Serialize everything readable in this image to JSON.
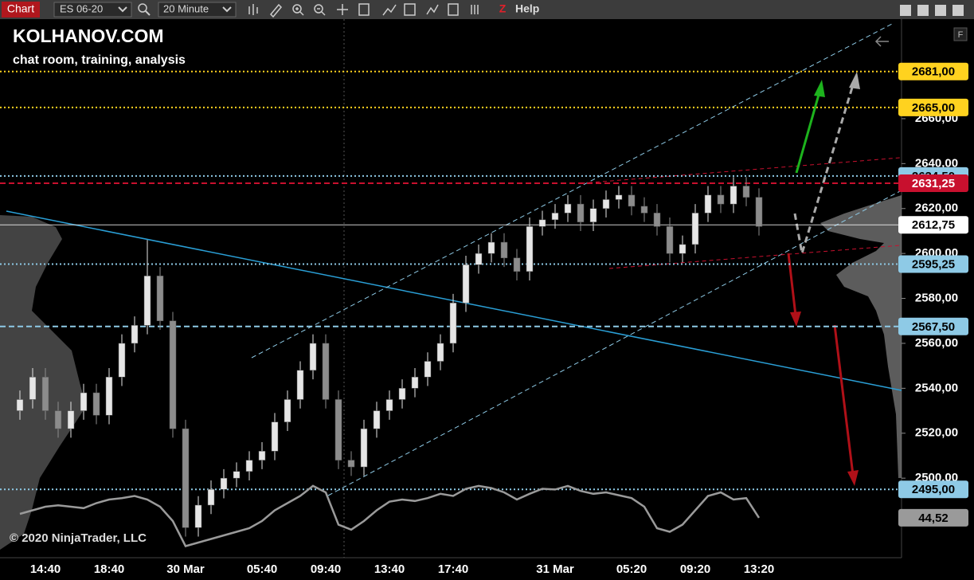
{
  "toolbar": {
    "tab": "Chart",
    "instrument": "ES 06-20",
    "interval": "20 Minute",
    "help": "Help"
  },
  "watermark": {
    "title": "KOLHANOV.COM",
    "subtitle": "chat room, training, analysis"
  },
  "copyright": "© 2020 NinjaTrader, LLC",
  "chart_data": {
    "type": "candlestick",
    "categories": [
      null,
      null,
      "14:40",
      null,
      null,
      null,
      null,
      "18:40",
      null,
      null,
      null,
      null,
      null,
      "30 Mar",
      null,
      null,
      null,
      null,
      null,
      "05:40",
      null,
      null,
      null,
      null,
      "09:40",
      null,
      null,
      null,
      null,
      "13:40",
      null,
      null,
      null,
      null,
      "17:40",
      null,
      null,
      null,
      null,
      null,
      null,
      null,
      "31 Mar",
      null,
      null,
      null,
      null,
      null,
      "05:20",
      null,
      null,
      null,
      null,
      "09:20",
      null,
      null,
      null,
      null,
      "13:20"
    ],
    "open": [
      2530,
      2535,
      2545,
      2530,
      2522,
      2530,
      2538,
      2528,
      2545,
      2560,
      2568,
      2590,
      2570,
      2522,
      2478,
      2488,
      2495,
      2500,
      2503,
      2508,
      2512,
      2525,
      2535,
      2548,
      2560,
      2535,
      2508,
      2505,
      2522,
      2530,
      2535,
      2540,
      2545,
      2552,
      2560,
      2578,
      2595,
      2600,
      2605,
      2598,
      2592,
      2612,
      2615,
      2618,
      2622,
      2614,
      2620,
      2624,
      2626,
      2621,
      2618,
      2612,
      2600,
      2604,
      2618,
      2626,
      2622,
      2630,
      2625
    ],
    "high": [
      2539,
      2549,
      2549,
      2534,
      2534,
      2542,
      2542,
      2549,
      2564,
      2572,
      2606,
      2594,
      2574,
      2526,
      2492,
      2499,
      2504,
      2507,
      2512,
      2516,
      2529,
      2539,
      2552,
      2564,
      2564,
      2539,
      2512,
      2526,
      2534,
      2539,
      2544,
      2549,
      2556,
      2564,
      2582,
      2599,
      2604,
      2609,
      2609,
      2602,
      2616,
      2619,
      2622,
      2626,
      2626,
      2624,
      2628,
      2630,
      2630,
      2625,
      2622,
      2616,
      2608,
      2622,
      2630,
      2630,
      2634,
      2634,
      2629
    ],
    "low": [
      2526,
      2531,
      2526,
      2518,
      2518,
      2526,
      2524,
      2524,
      2541,
      2556,
      2564,
      2566,
      2518,
      2474,
      2474,
      2484,
      2491,
      2496,
      2499,
      2504,
      2508,
      2521,
      2531,
      2544,
      2531,
      2504,
      2501,
      2501,
      2518,
      2526,
      2531,
      2536,
      2541,
      2548,
      2556,
      2574,
      2591,
      2596,
      2594,
      2588,
      2588,
      2608,
      2611,
      2614,
      2610,
      2610,
      2616,
      2620,
      2617,
      2614,
      2608,
      2596,
      2596,
      2600,
      2614,
      2618,
      2618,
      2621,
      2608
    ],
    "close": [
      2535,
      2545,
      2530,
      2522,
      2530,
      2538,
      2528,
      2545,
      2560,
      2568,
      2590,
      2570,
      2522,
      2478,
      2488,
      2495,
      2500,
      2503,
      2508,
      2512,
      2525,
      2535,
      2548,
      2560,
      2535,
      2508,
      2505,
      2522,
      2530,
      2535,
      2540,
      2545,
      2552,
      2560,
      2578,
      2595,
      2600,
      2605,
      2598,
      2592,
      2612,
      2615,
      2618,
      2622,
      2614,
      2620,
      2624,
      2626,
      2621,
      2618,
      2612,
      2600,
      2604,
      2618,
      2626,
      2622,
      2630,
      2625,
      2612
    ],
    "up_color": "#e6e6e6",
    "down_color": "#8c8c8c",
    "ylim": [
      2464.6,
      2704.3
    ],
    "yticks": [
      {
        "value": 2500,
        "label": "2500,00"
      },
      {
        "value": 2520,
        "label": "2520,00"
      },
      {
        "value": 2540,
        "label": "2540,00"
      },
      {
        "value": 2560,
        "label": "2560,00"
      },
      {
        "value": 2580,
        "label": "2580,00"
      },
      {
        "value": 2600,
        "label": "2600,00"
      },
      {
        "value": 2620,
        "label": "2620,00"
      },
      {
        "value": 2640,
        "label": "2640,00"
      },
      {
        "value": 2660,
        "label": "2660,00"
      }
    ],
    "levels": [
      {
        "value": 2681,
        "label": "2681,00",
        "color": "#ffd21f",
        "text_color": "#000000",
        "style": "dotted"
      },
      {
        "value": 2665,
        "label": "2665,00",
        "color": "#ffd21f",
        "text_color": "#000000",
        "style": "dotted"
      },
      {
        "value": 2634.5,
        "label": "2634,50",
        "color": "#8ecae6",
        "text_color": "#000000",
        "style": "dotted"
      },
      {
        "value": 2631.25,
        "label": "2631,25",
        "color": "#c8102e",
        "text_color": "#ffffff",
        "style": "dashed"
      },
      {
        "value": 2612.75,
        "label": "2612,75",
        "color": "#ffffff",
        "text_color": "#000000",
        "style": "solid"
      },
      {
        "value": 2595.25,
        "label": "2595,25",
        "color": "#8ecae6",
        "text_color": "#000000",
        "style": "dotted"
      },
      {
        "value": 2567.5,
        "label": "2567,50",
        "color": "#8ecae6",
        "text_color": "#000000",
        "style": "dashed"
      },
      {
        "value": 2495,
        "label": "2495,00",
        "color": "#8ecae6",
        "text_color": "#000000",
        "style": "dotted"
      }
    ],
    "indicator": {
      "values": [
        50,
        55,
        60,
        62,
        60,
        58,
        65,
        70,
        72,
        75,
        70,
        60,
        40,
        5,
        10,
        15,
        20,
        25,
        30,
        40,
        55,
        65,
        75,
        89,
        80,
        35,
        28,
        40,
        55,
        67,
        70,
        68,
        72,
        78,
        75,
        85,
        89,
        86,
        80,
        70,
        78,
        85,
        84,
        89,
        82,
        78,
        80,
        76,
        72,
        60,
        30,
        25,
        35,
        55,
        75,
        80,
        70,
        72,
        44.52
      ],
      "ylim": [
        0,
        100
      ],
      "color": "#9a9a9a",
      "last_label": "44,52"
    }
  }
}
